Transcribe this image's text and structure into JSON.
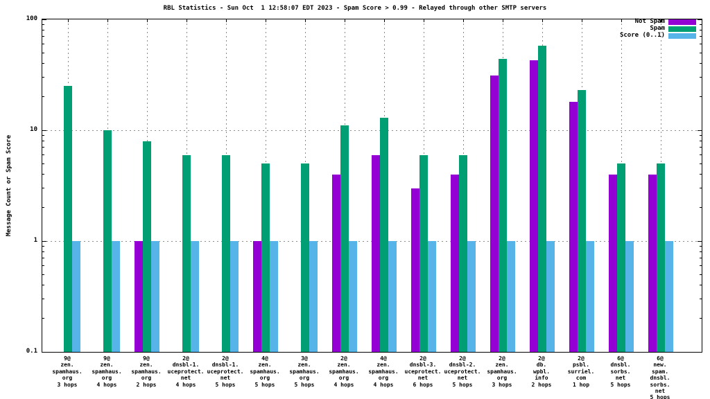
{
  "chart_data": {
    "type": "bar",
    "title": "RBL Statistics - Sun Oct  1 12:58:07 EDT 2023 - Spam Score > 0.99 - Relayed through other SMTP servers",
    "xlabel": "",
    "ylabel": "Message Count or Spam Score",
    "y_scale": "log",
    "ylim": [
      0.1,
      100
    ],
    "y_major_ticks": [
      "0.1",
      "1",
      "10",
      "100"
    ],
    "grid": true,
    "legend_position": "top-right",
    "colors": {
      "not_spam": "#9400d3",
      "spam": "#009e73",
      "score": "#56b4e9",
      "grid": "#8a8a8a",
      "axis": "#000000",
      "background": "#ffffff"
    },
    "categories": [
      [
        "9@",
        "zen.",
        "spamhaus.",
        "org",
        "3 hops"
      ],
      [
        "9@",
        "zen.",
        "spamhaus.",
        "org",
        "4 hops"
      ],
      [
        "9@",
        "zen.",
        "spamhaus.",
        "org",
        "2 hops"
      ],
      [
        "2@",
        "dnsbl-1.",
        "uceprotect.",
        "net",
        "4 hops"
      ],
      [
        "2@",
        "dnsbl-1.",
        "uceprotect.",
        "net",
        "5 hops"
      ],
      [
        "4@",
        "zen.",
        "spamhaus.",
        "org",
        "5 hops"
      ],
      [
        "3@",
        "zen.",
        "spamhaus.",
        "org",
        "5 hops"
      ],
      [
        "2@",
        "zen.",
        "spamhaus.",
        "org",
        "4 hops"
      ],
      [
        "4@",
        "zen.",
        "spamhaus.",
        "org",
        "4 hops"
      ],
      [
        "2@",
        "dnsbl-3.",
        "uceprotect.",
        "net",
        "6 hops"
      ],
      [
        "2@",
        "dnsbl-2.",
        "uceprotect.",
        "net",
        "5 hops"
      ],
      [
        "2@",
        "zen.",
        "spamhaus.",
        "org",
        "3 hops"
      ],
      [
        "2@",
        "db.",
        "wpbl.",
        "info",
        "2 hops"
      ],
      [
        "2@",
        "psbl.",
        "surriel.",
        "com",
        "1 hop"
      ],
      [
        "6@",
        "dnsbl.",
        "sorbs.",
        "net",
        "5 hops"
      ],
      [
        "6@",
        "new.",
        "spam.",
        "dnsbl.",
        "sorbs.",
        "net",
        "5 hops"
      ]
    ],
    "series": [
      {
        "name": "Not Spam",
        "color_key": "not_spam",
        "values": [
          null,
          null,
          1,
          null,
          null,
          1,
          null,
          4,
          6,
          3,
          4,
          31,
          43,
          18,
          4,
          4
        ]
      },
      {
        "name": "Spam",
        "color_key": "spam",
        "values": [
          25,
          10,
          8,
          6,
          6,
          5,
          5,
          11,
          13,
          6,
          6,
          44,
          58,
          23,
          5,
          5
        ]
      },
      {
        "name": "Score (0..1)",
        "color_key": "score",
        "values": [
          1,
          1,
          1,
          1,
          1,
          1,
          1,
          1,
          1,
          1,
          1,
          1,
          1,
          1,
          1,
          1
        ]
      }
    ]
  }
}
